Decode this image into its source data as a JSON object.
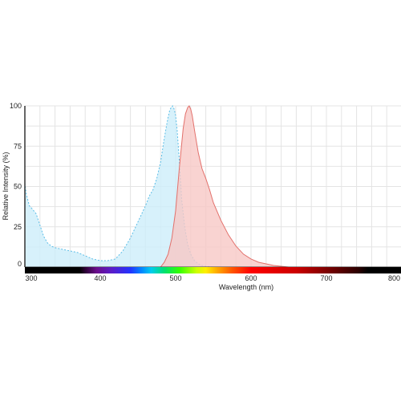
{
  "chart_data": {
    "type": "area",
    "xlabel": "Wavelength (nm)",
    "ylabel": "Relative Intensity (%)",
    "xlim": [
      300,
      800
    ],
    "ylim": [
      0,
      100
    ],
    "x_ticks": [
      300,
      400,
      500,
      600,
      700,
      800
    ],
    "y_ticks": [
      0,
      25,
      50,
      75,
      100
    ],
    "grid": true,
    "legend": "none",
    "wavelength_color_bar": true,
    "series": [
      {
        "role": "excitation",
        "fill_color": "#cdeefa",
        "line_color": "#5bbde6",
        "line_style": "dashed",
        "x": [
          300,
          302,
          306,
          310,
          315,
          320,
          325,
          330,
          335,
          340,
          350,
          360,
          370,
          380,
          390,
          400,
          410,
          420,
          430,
          440,
          450,
          460,
          465,
          470,
          475,
          480,
          485,
          488,
          490,
          492,
          494,
          496,
          498,
          500,
          502,
          505,
          508,
          512,
          516,
          520,
          525,
          530,
          535,
          540,
          550
        ],
        "y": [
          52,
          45,
          38,
          36,
          33,
          26,
          19,
          15,
          13,
          12,
          11,
          10,
          9,
          7,
          5,
          4,
          4,
          5,
          10,
          18,
          28,
          38,
          44,
          48,
          55,
          65,
          80,
          88,
          93,
          97,
          99,
          100,
          98,
          94,
          85,
          65,
          42,
          25,
          14,
          8,
          4,
          2,
          1,
          0.5,
          0
        ]
      },
      {
        "role": "emission",
        "fill_color": "#f7c8c6",
        "line_color": "#e2706b",
        "line_style": "solid",
        "x": [
          480,
          485,
          490,
          495,
          500,
          505,
          510,
          513,
          516,
          518,
          520,
          522,
          525,
          530,
          535,
          540,
          545,
          550,
          560,
          570,
          580,
          590,
          600,
          610,
          620,
          630,
          640,
          650
        ],
        "y": [
          0,
          3,
          8,
          18,
          35,
          62,
          86,
          95,
          99,
          100,
          98,
          94,
          85,
          71,
          61,
          55,
          48,
          40,
          29,
          20,
          13,
          8,
          5,
          3,
          2,
          1,
          0.5,
          0
        ]
      }
    ]
  }
}
